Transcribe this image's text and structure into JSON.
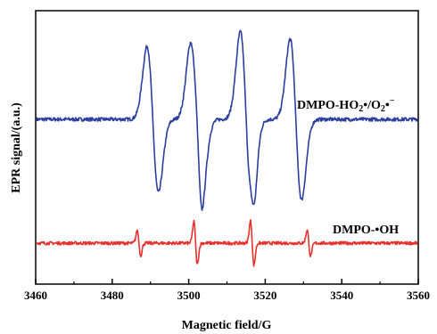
{
  "chart_data": {
    "type": "line",
    "xlabel": "Magnetic field/G",
    "ylabel": "EPR signal/(a.u.)",
    "xlim": [
      3460,
      3560
    ],
    "x_ticks": [
      "3460",
      "3480",
      "3500",
      "3520",
      "3540",
      "3560"
    ],
    "y_ticks_shown": false,
    "series": [
      {
        "name": "DMPO-HO₂•/O₂•⁻",
        "label_parts": {
          "a": "DMPO-HO",
          "b": "2",
          "c": "•/O",
          "d": "2",
          "e": "•",
          "f": "−"
        },
        "color": "#2b3fa0",
        "baseline": 0.0,
        "peaks": [
          {
            "x": 3490.6,
            "amp": 1.0
          },
          {
            "x": 3502.0,
            "amp": 1.05
          },
          {
            "x": 3515.0,
            "amp": 1.2
          },
          {
            "x": 3528.0,
            "amp": 1.1
          }
        ],
        "shoulders": [
          {
            "x": 3502.8,
            "amp": 0.18
          },
          {
            "x": 3516.8,
            "amp": 0.18
          }
        ]
      },
      {
        "name": "DMPO-•OH",
        "color": "#e8302c",
        "baseline": 0.0,
        "peaks": [
          {
            "x": 3487.0,
            "amp": 0.35
          },
          {
            "x": 3501.8,
            "amp": 0.6
          },
          {
            "x": 3516.6,
            "amp": 0.62
          },
          {
            "x": 3531.4,
            "amp": 0.36
          }
        ]
      }
    ]
  }
}
